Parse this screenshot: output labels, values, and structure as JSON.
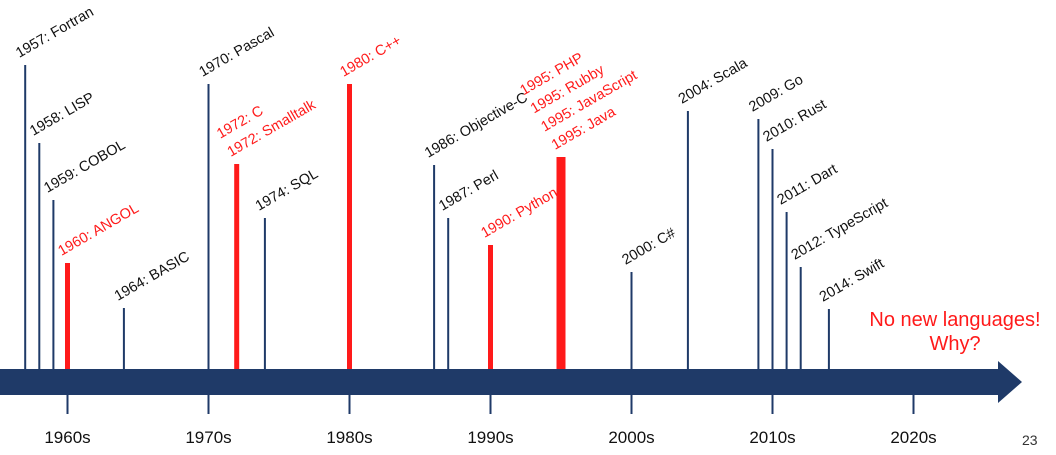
{
  "colors": {
    "axis": "#1f3a68",
    "stem": "#1f3a68",
    "highlight": "#ff1a1a",
    "text": "#111111"
  },
  "decades": [
    "1960s",
    "1970s",
    "1980s",
    "1990s",
    "2000s",
    "2010s",
    "2020s"
  ],
  "events": [
    {
      "year": 1957,
      "lines": [
        "1957: Fortran"
      ],
      "highlight": false,
      "level": 65
    },
    {
      "year": 1958,
      "lines": [
        "1958: LISP"
      ],
      "highlight": false,
      "level": 143
    },
    {
      "year": 1959,
      "lines": [
        "1959: COBOL"
      ],
      "highlight": false,
      "level": 200
    },
    {
      "year": 1960,
      "lines": [
        "1960: ANGOL"
      ],
      "highlight": true,
      "level": 263
    },
    {
      "year": 1964,
      "lines": [
        "1964: BASIC"
      ],
      "highlight": false,
      "level": 308
    },
    {
      "year": 1970,
      "lines": [
        "1970: Pascal"
      ],
      "highlight": false,
      "level": 84
    },
    {
      "year": 1972,
      "lines": [
        "1972: C",
        "1972: Smalltalk"
      ],
      "highlight": true,
      "level": 164
    },
    {
      "year": 1974,
      "lines": [
        "1974: SQL"
      ],
      "highlight": false,
      "level": 218
    },
    {
      "year": 1980,
      "lines": [
        "1980: C++"
      ],
      "highlight": true,
      "level": 84
    },
    {
      "year": 1986,
      "lines": [
        "1986: Objective-C"
      ],
      "highlight": false,
      "level": 165
    },
    {
      "year": 1987,
      "lines": [
        "1987: Perl"
      ],
      "highlight": false,
      "level": 218
    },
    {
      "year": 1990,
      "lines": [
        "1990: Python"
      ],
      "highlight": true,
      "level": 245
    },
    {
      "year": 1995,
      "lines": [
        "1995: PHP",
        "1995: Rubby",
        "1995: JavaScript",
        "1995: Java"
      ],
      "highlight": true,
      "level": 157
    },
    {
      "year": 2000,
      "lines": [
        "2000: C#"
      ],
      "highlight": false,
      "level": 272
    },
    {
      "year": 2004,
      "lines": [
        "2004: Scala"
      ],
      "highlight": false,
      "level": 111
    },
    {
      "year": 2009,
      "lines": [
        "2009: Go"
      ],
      "highlight": false,
      "level": 119
    },
    {
      "year": 2010,
      "lines": [
        "2010: Rust"
      ],
      "highlight": false,
      "level": 149
    },
    {
      "year": 2011,
      "lines": [
        "2011: Dart"
      ],
      "highlight": false,
      "level": 212
    },
    {
      "year": 2012,
      "lines": [
        "2012: TypeScript"
      ],
      "highlight": false,
      "level": 267
    },
    {
      "year": 2014,
      "lines": [
        "2014: Swift"
      ],
      "highlight": false,
      "level": 309
    }
  ],
  "callout": {
    "line1": "No new languages!",
    "line2": "Why?"
  },
  "page_number": "23"
}
